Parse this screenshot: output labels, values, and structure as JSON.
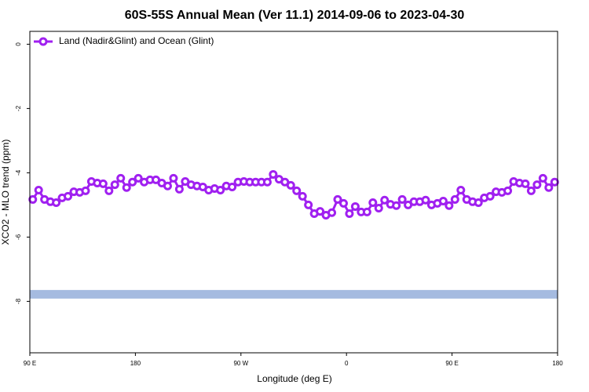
{
  "chart_data": {
    "type": "line",
    "title": "60S-55S Annual Mean (Ver 11.1)   2014-09-06 to 2023-04-30",
    "x_label": "Longitude (deg E)",
    "y_label": "XCO2 - MLO trend (ppm)",
    "x": [
      -267.5,
      -262.5,
      -257.5,
      -252.5,
      -247.5,
      -242.5,
      -237.5,
      -232.5,
      -227.5,
      -222.5,
      -217.5,
      -212.5,
      -207.5,
      -202.5,
      -197.5,
      -192.5,
      -187.5,
      -182.5,
      -177.5,
      -172.5,
      -167.5,
      -162.5,
      -157.5,
      -152.5,
      -147.5,
      -142.5,
      -137.5,
      -132.5,
      -127.5,
      -122.5,
      -117.5,
      -112.5,
      -107.5,
      -102.5,
      -97.5,
      -92.5,
      -87.5,
      -82.5,
      -77.5,
      -72.5,
      -67.5,
      -62.5,
      -57.5,
      -52.5,
      -47.5,
      -42.5,
      -37.5,
      -32.5,
      -27.5,
      -22.5,
      -17.5,
      -12.5,
      -7.5,
      -2.5,
      2.5,
      7.5,
      12.5,
      17.5,
      22.5,
      27.5,
      32.5,
      37.5,
      42.5,
      47.5,
      52.5,
      57.5,
      62.5,
      67.5,
      72.5,
      77.5,
      82.5,
      87.5,
      92.5,
      97.5,
      102.5,
      107.5,
      112.5,
      117.5,
      122.5,
      127.5,
      132.5,
      137.5,
      142.5,
      147.5,
      152.5,
      157.5,
      162.5,
      167.5,
      172.5,
      177.5
    ],
    "series": [
      {
        "name": "Land (Nadir&Glint) and Ocean (Glint)",
        "color": "#a020f0",
        "values": [
          -4.83,
          -4.54,
          -4.83,
          -4.9,
          -4.93,
          -4.78,
          -4.73,
          -4.59,
          -4.61,
          -4.56,
          -4.27,
          -4.32,
          -4.34,
          -4.56,
          -4.37,
          -4.17,
          -4.46,
          -4.29,
          -4.17,
          -4.29,
          -4.22,
          -4.22,
          -4.32,
          -4.41,
          -4.17,
          -4.51,
          -4.27,
          -4.37,
          -4.41,
          -4.44,
          -4.54,
          -4.49,
          -4.54,
          -4.41,
          -4.44,
          -4.29,
          -4.27,
          -4.29,
          -4.29,
          -4.29,
          -4.29,
          -4.05,
          -4.2,
          -4.29,
          -4.39,
          -4.56,
          -4.73,
          -5.0,
          -5.27,
          -5.2,
          -5.32,
          -5.24,
          -4.83,
          -4.95,
          -5.27,
          -5.05,
          -5.22,
          -5.22,
          -4.93,
          -5.1,
          -4.85,
          -4.98,
          -5.02,
          -4.83,
          -5.0,
          -4.9,
          -4.9,
          -4.85,
          -5.0,
          -4.95,
          -4.88,
          -5.02,
          -4.83,
          -4.54,
          -4.83,
          -4.9,
          -4.93,
          -4.78,
          -4.73,
          -4.59,
          -4.61,
          -4.56,
          -4.27,
          -4.32,
          -4.34,
          -4.56,
          -4.37,
          -4.17,
          -4.46,
          -4.29
        ]
      }
    ],
    "reference_band": {
      "value": -7.78,
      "color": "#a5bbe0"
    },
    "xlim": [
      -270,
      180
    ],
    "xticks": [
      {
        "value": -270,
        "label": "90 E"
      },
      {
        "value": -180,
        "label": "180"
      },
      {
        "value": -90,
        "label": "90 W"
      },
      0,
      {
        "value": 90,
        "label": "90 E"
      },
      {
        "value": 180,
        "label": "180"
      }
    ],
    "ylim": [
      -9.6,
      0.4
    ],
    "yticks": [
      0,
      -2,
      -4,
      -6,
      -8
    ],
    "legend": "top-left"
  }
}
